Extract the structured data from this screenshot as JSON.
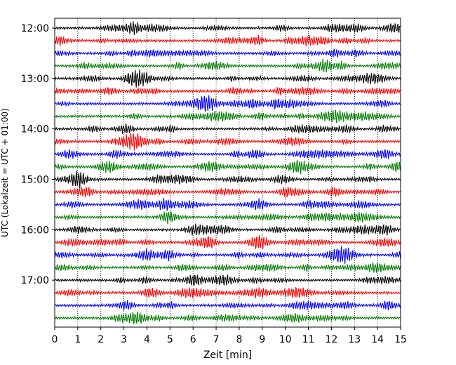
{
  "chart_data": {
    "type": "line",
    "title": "",
    "xlabel": "Zeit  [min]",
    "ylabel": "UTC (Lokalzeit = UTC + 01:00)",
    "xlim": [
      0,
      15
    ],
    "x_ticks": [
      "0",
      "1",
      "2",
      "3",
      "4",
      "5",
      "6",
      "7",
      "8",
      "9",
      "10",
      "11",
      "12",
      "13",
      "14",
      "15"
    ],
    "y_ticks": [
      "12:00",
      "13:00",
      "14:00",
      "15:00",
      "16:00",
      "17:00"
    ],
    "y_tick_hours": [
      12,
      13,
      14,
      15,
      16,
      17
    ],
    "start_time": "12:00",
    "end_time": "17:45",
    "trace_interval_min": 15,
    "trace_count": 24,
    "trace_colors": [
      "#000000",
      "#ff0000",
      "#0000ff",
      "#007f00"
    ],
    "grid": {
      "x": true,
      "y": false,
      "style": "dotted"
    }
  }
}
